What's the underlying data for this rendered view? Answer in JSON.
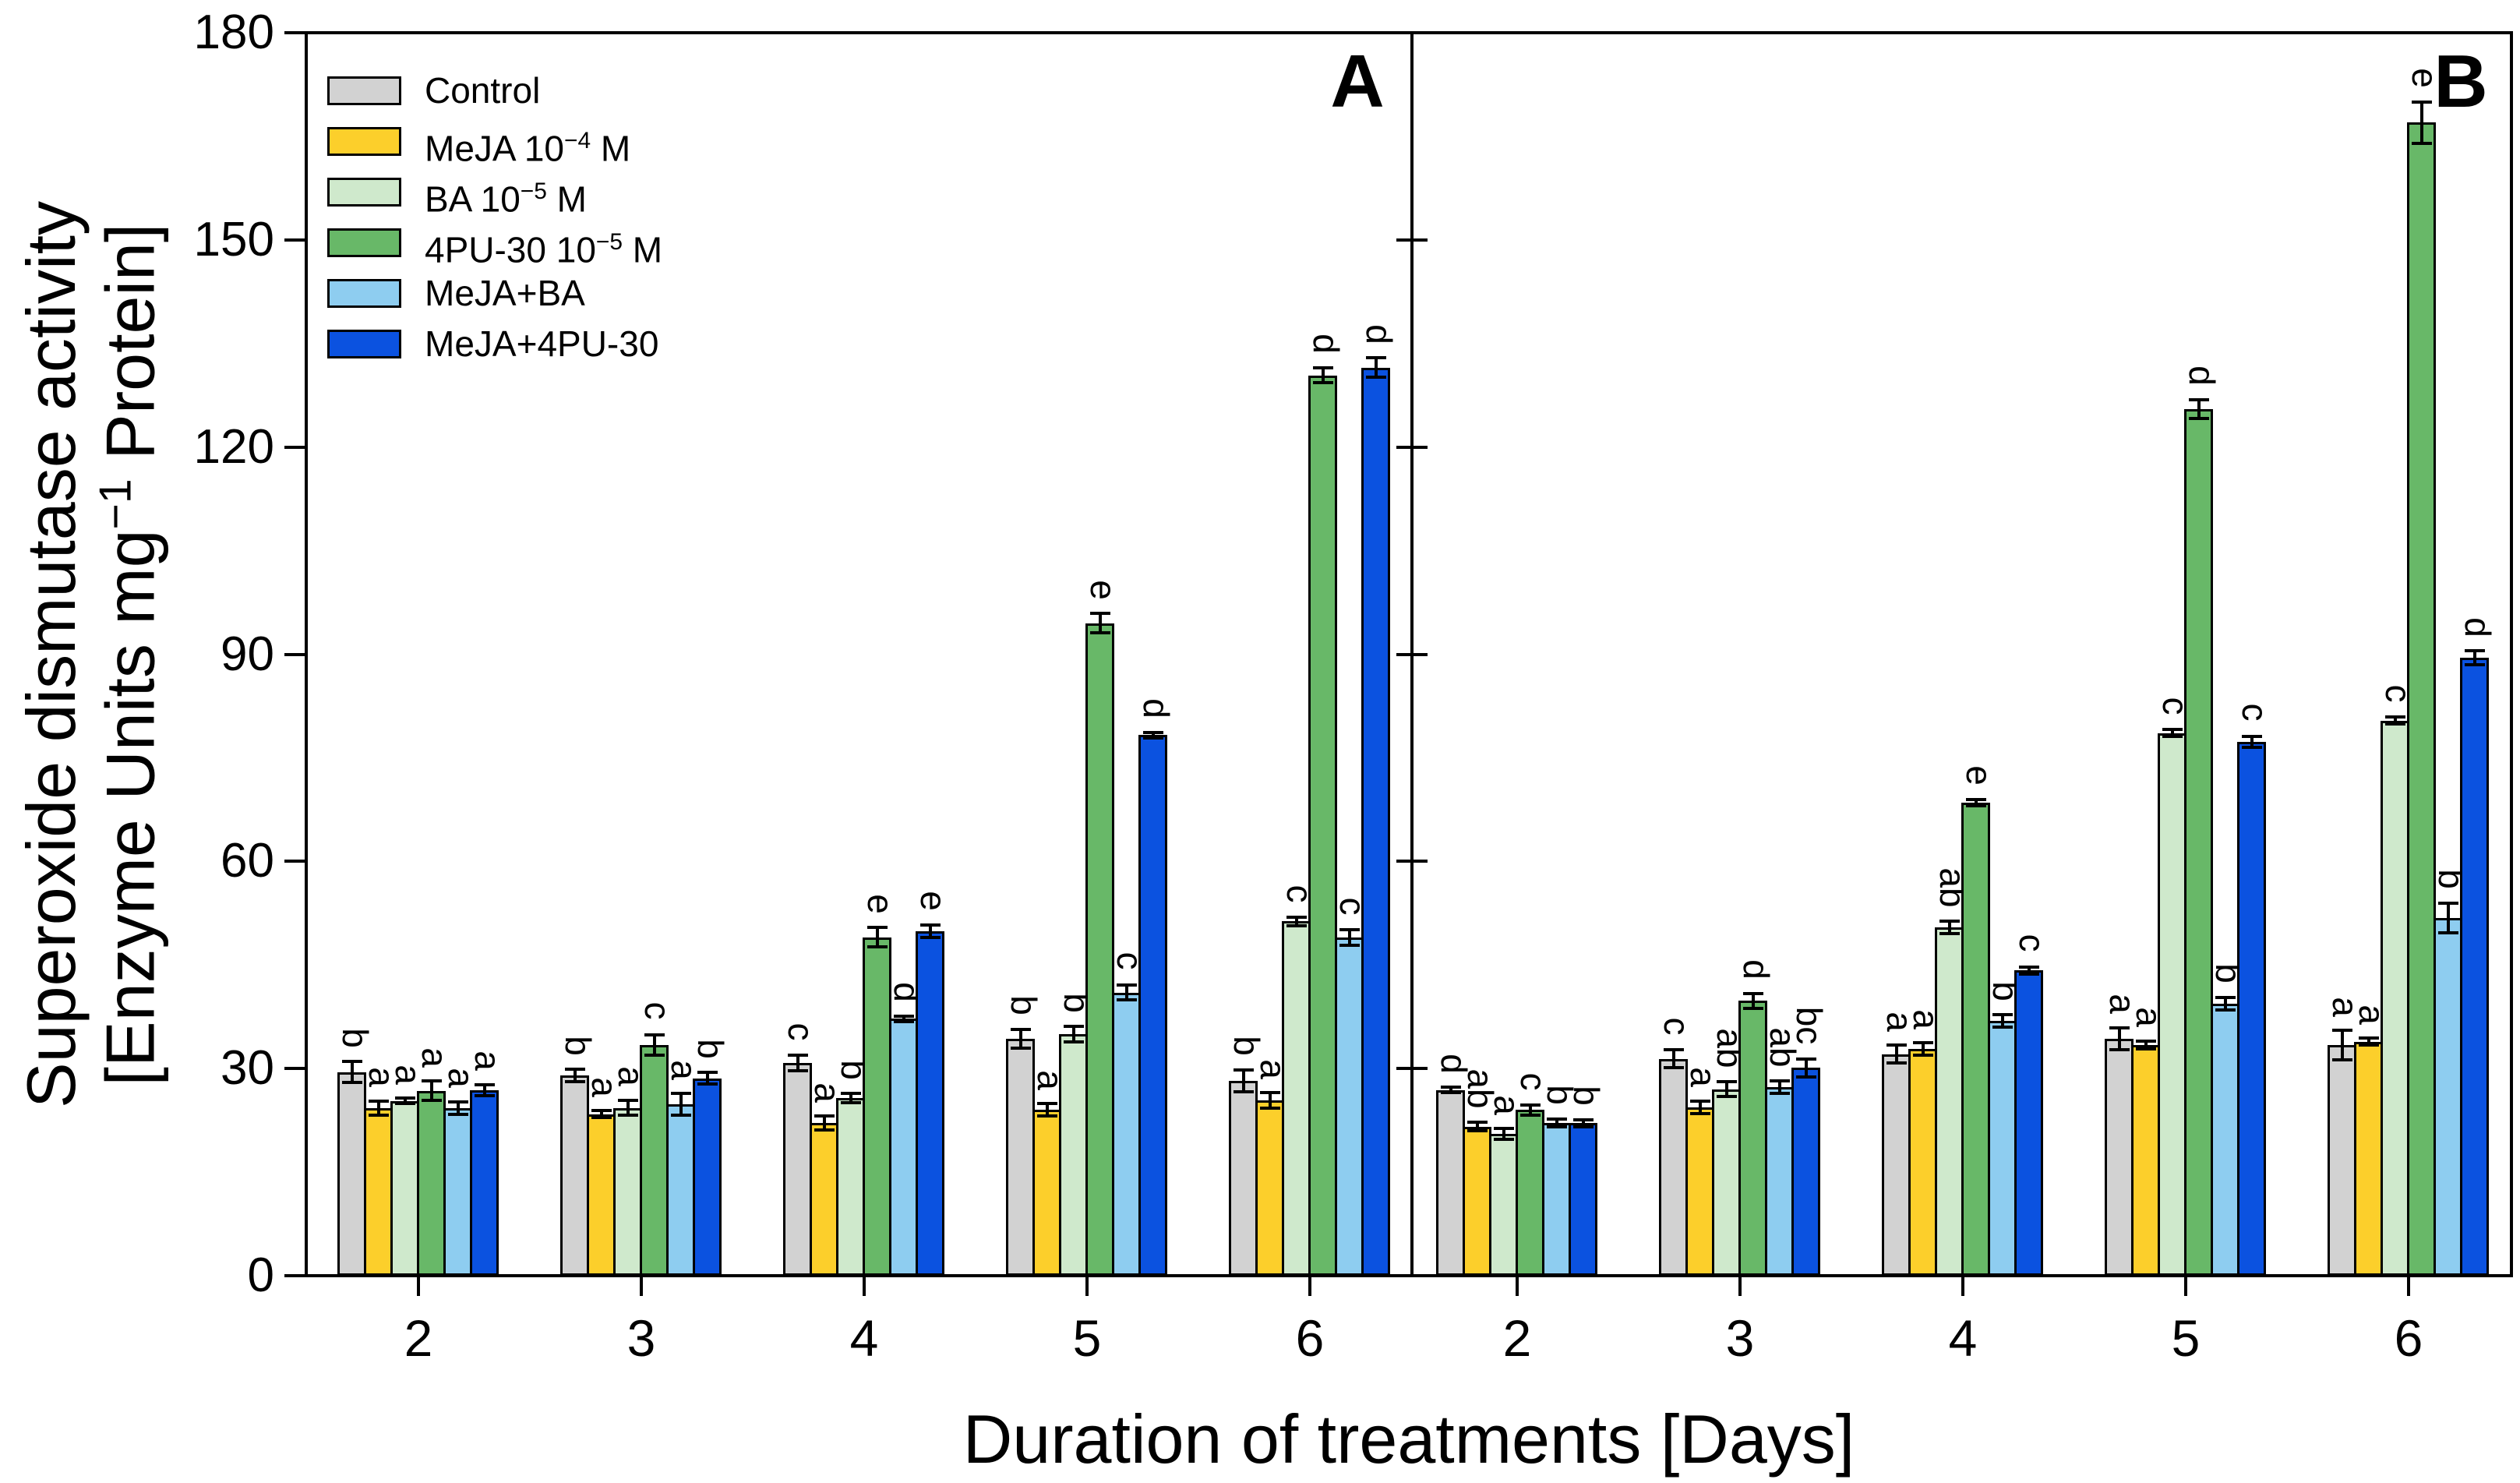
{
  "figure": {
    "background": "#ffffff",
    "panel_a_label": "A",
    "panel_b_label": "B"
  },
  "axis": {
    "x_title": "Duration of treatments [Days]",
    "y_title_line1": "Superoxide dismutase activity",
    "y_title_line2_pre": "[Enzyme Units mg",
    "y_title_line2_sup": "−1",
    "y_title_line2_post": " Protein]"
  },
  "chart_data": {
    "type": "bar",
    "title": "",
    "xlabel": "Duration of treatments [Days]",
    "ylabel": "Superoxide dismutase activity [Enzyme Units mg−1 Protein]",
    "ylim": [
      0,
      180
    ],
    "yticks": [
      0,
      30,
      60,
      90,
      120,
      150,
      180
    ],
    "categories": [
      "2",
      "3",
      "4",
      "5",
      "6"
    ],
    "grid": false,
    "legend_position": "top-left-inside-panel-A",
    "error_bars": true,
    "significance_letters_rotated": true,
    "series": [
      {
        "name": "Control",
        "label_pre": "Control",
        "label_sup": "",
        "label_post": "",
        "color": "#d2d2d2"
      },
      {
        "name": "MeJA 10−4 M",
        "label_pre": "MeJA 10",
        "label_sup": "−4",
        "label_post": " M",
        "color": "#fccf2b"
      },
      {
        "name": "BA 10−5 M",
        "label_pre": "BA 10",
        "label_sup": "−5",
        "label_post": " M",
        "color": "#cfe9cc"
      },
      {
        "name": "4PU-30 10−5 M",
        "label_pre": "4PU-30 10",
        "label_sup": "−5",
        "label_post": " M",
        "color": "#68b868"
      },
      {
        "name": "MeJA+BA",
        "label_pre": "MeJA+BA",
        "label_sup": "",
        "label_post": "",
        "color": "#8ecdf0"
      },
      {
        "name": "MeJA+4PU-30",
        "label_pre": "MeJA+4PU-30",
        "label_sup": "",
        "label_post": "",
        "color": "#0b52e0"
      }
    ],
    "panels": [
      {
        "label": "A",
        "groups": [
          {
            "category": "2",
            "values": [
              29.5,
              24.3,
              25.3,
              26.8,
              24.3,
              26.9
            ],
            "errors": [
              1.5,
              1.0,
              0.4,
              1.4,
              0.9,
              0.8
            ],
            "letters": [
              "b",
              "a",
              "a",
              "a",
              "a",
              "a"
            ]
          },
          {
            "category": "3",
            "values": [
              29.0,
              23.4,
              24.3,
              33.4,
              24.8,
              28.6
            ],
            "errors": [
              0.9,
              0.5,
              1.1,
              1.5,
              1.6,
              0.8
            ],
            "letters": [
              "b",
              "a",
              "a",
              "c",
              "a",
              "b"
            ]
          },
          {
            "category": "4",
            "values": [
              30.8,
              22.1,
              25.7,
              49.0,
              37.2,
              49.9
            ],
            "errors": [
              1.1,
              1.0,
              0.7,
              1.4,
              0.4,
              0.9
            ],
            "letters": [
              "c",
              "a",
              "b",
              "e",
              "d",
              "e"
            ]
          },
          {
            "category": "5",
            "values": [
              34.3,
              24.0,
              35.0,
              94.5,
              41.0,
              78.3
            ],
            "errors": [
              1.4,
              0.9,
              1.1,
              1.4,
              1.1,
              0.4
            ],
            "letters": [
              "b",
              "a",
              "b",
              "e",
              "c",
              "d"
            ]
          },
          {
            "category": "6",
            "values": [
              28.2,
              25.4,
              51.3,
              130.4,
              49.0,
              131.5
            ],
            "errors": [
              1.6,
              1.1,
              0.6,
              1.1,
              1.1,
              1.4
            ],
            "letters": [
              "b",
              "a",
              "c",
              "d",
              "c",
              "d"
            ]
          }
        ]
      },
      {
        "label": "B",
        "groups": [
          {
            "category": "2",
            "values": [
              26.9,
              21.6,
              20.5,
              24.0,
              22.1,
              22.1
            ],
            "errors": [
              0.4,
              0.6,
              0.8,
              0.7,
              0.6,
              0.5
            ],
            "letters": [
              "d",
              "ab",
              "a",
              "c",
              "b",
              "b"
            ]
          },
          {
            "category": "3",
            "values": [
              31.4,
              24.4,
              27.0,
              39.8,
              27.3,
              30.1
            ],
            "errors": [
              1.3,
              0.9,
              1.1,
              1.1,
              0.9,
              1.3
            ],
            "letters": [
              "c",
              "a",
              "ab",
              "d",
              "ab",
              "bc"
            ]
          },
          {
            "category": "4",
            "values": [
              32.1,
              32.8,
              50.4,
              68.5,
              36.9,
              44.2
            ],
            "errors": [
              1.3,
              0.9,
              0.9,
              0.5,
              0.9,
              0.5
            ],
            "letters": [
              "a",
              "a",
              "ab",
              "e",
              "b",
              "c"
            ]
          },
          {
            "category": "5",
            "values": [
              34.3,
              33.4,
              78.6,
              125.5,
              39.4,
              77.3
            ],
            "errors": [
              1.6,
              0.6,
              0.5,
              1.4,
              0.9,
              0.8
            ],
            "letters": [
              "a",
              "a",
              "c",
              "d",
              "b",
              "c"
            ]
          },
          {
            "category": "6",
            "values": [
              33.4,
              33.9,
              80.4,
              167.0,
              51.8,
              89.5
            ],
            "errors": [
              2.1,
              0.5,
              0.5,
              3.0,
              2.2,
              1.0
            ],
            "letters": [
              "a",
              "a",
              "c",
              "e",
              "b",
              "d"
            ]
          }
        ]
      }
    ]
  }
}
